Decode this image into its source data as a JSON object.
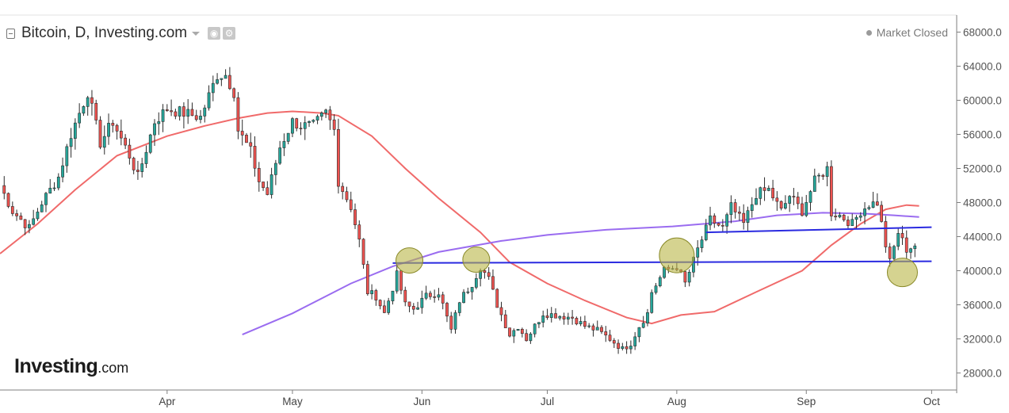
{
  "header": {
    "title": "Bitcoin, D, Investing.com",
    "market_status": "Market Closed",
    "logo_main": "Investing",
    "logo_sub": ".com"
  },
  "colors": {
    "up": "#26a69a",
    "down": "#ef5350",
    "ma_short": "#f06a6a",
    "ma_long": "#9a6cf0",
    "level": "#2a2ae0",
    "marker": "#b9b646"
  },
  "chart_data": {
    "type": "candlestick",
    "title": "Bitcoin, D, Investing.com",
    "ylim": [
      26000,
      70000
    ],
    "y_ticks": [
      28000,
      32000,
      36000,
      40000,
      44000,
      48000,
      52000,
      56000,
      60000,
      64000,
      68000
    ],
    "y_tick_labels": [
      "28000.0",
      "32000.0",
      "36000.0",
      "40000.0",
      "44000.0",
      "48000.0",
      "52000.0",
      "56000.0",
      "60000.0",
      "64000.0",
      "68000.0"
    ],
    "x_ticks": [
      {
        "date": "2021-04-01",
        "label": "Apr"
      },
      {
        "date": "2021-05-01",
        "label": "May"
      },
      {
        "date": "2021-06-01",
        "label": "Jun"
      },
      {
        "date": "2021-07-01",
        "label": "Jul"
      },
      {
        "date": "2021-08-01",
        "label": "Aug"
      },
      {
        "date": "2021-09-01",
        "label": "Sep"
      },
      {
        "date": "2021-10-01",
        "label": "Oct"
      }
    ],
    "x_range": [
      "2021-02-20",
      "2021-10-07"
    ],
    "price_anchors": [
      [
        "2021-02-20",
        50000
      ],
      [
        "2021-02-23",
        47000
      ],
      [
        "2021-02-27",
        45000
      ],
      [
        "2021-03-02",
        48000
      ],
      [
        "2021-03-06",
        51000
      ],
      [
        "2021-03-09",
        56000
      ],
      [
        "2021-03-13",
        61000
      ],
      [
        "2021-03-16",
        55000
      ],
      [
        "2021-03-19",
        57500
      ],
      [
        "2021-03-23",
        53500
      ],
      [
        "2021-03-25",
        51000
      ],
      [
        "2021-03-29",
        57500
      ],
      [
        "2021-04-01",
        59000
      ],
      [
        "2021-04-05",
        58500
      ],
      [
        "2021-04-09",
        58000
      ],
      [
        "2021-04-13",
        63000
      ],
      [
        "2021-04-15",
        63000
      ],
      [
        "2021-04-17",
        61000
      ],
      [
        "2021-04-18",
        56500
      ],
      [
        "2021-04-21",
        54000
      ],
      [
        "2021-04-23",
        50500
      ],
      [
        "2021-04-25",
        49000
      ],
      [
        "2021-04-28",
        54500
      ],
      [
        "2021-05-01",
        57500
      ],
      [
        "2021-05-03",
        57000
      ],
      [
        "2021-05-06",
        57000
      ],
      [
        "2021-05-09",
        58500
      ],
      [
        "2021-05-11",
        56500
      ],
      [
        "2021-05-12",
        50500
      ],
      [
        "2021-05-15",
        47500
      ],
      [
        "2021-05-17",
        43500
      ],
      [
        "2021-05-19",
        37500
      ],
      [
        "2021-05-21",
        37000
      ],
      [
        "2021-05-23",
        35000
      ],
      [
        "2021-05-26",
        39500
      ],
      [
        "2021-05-28",
        36000
      ],
      [
        "2021-05-30",
        35500
      ],
      [
        "2021-06-02",
        37000
      ],
      [
        "2021-06-05",
        37500
      ],
      [
        "2021-06-08",
        33000
      ],
      [
        "2021-06-10",
        36500
      ],
      [
        "2021-06-13",
        38500
      ],
      [
        "2021-06-15",
        40500
      ],
      [
        "2021-06-17",
        39000
      ],
      [
        "2021-06-19",
        36000
      ],
      [
        "2021-06-22",
        32500
      ],
      [
        "2021-06-24",
        33500
      ],
      [
        "2021-06-26",
        32000
      ],
      [
        "2021-06-30",
        35000
      ],
      [
        "2021-07-03",
        34800
      ],
      [
        "2021-07-07",
        34500
      ],
      [
        "2021-07-10",
        33500
      ],
      [
        "2021-07-13",
        33000
      ],
      [
        "2021-07-16",
        32000
      ],
      [
        "2021-07-19",
        30800
      ],
      [
        "2021-07-21",
        31500
      ],
      [
        "2021-07-23",
        33500
      ],
      [
        "2021-07-25",
        35000
      ],
      [
        "2021-07-26",
        37500
      ],
      [
        "2021-07-29",
        40000
      ],
      [
        "2021-08-01",
        40500
      ],
      [
        "2021-08-03",
        38500
      ],
      [
        "2021-08-06",
        42500
      ],
      [
        "2021-08-09",
        46000
      ],
      [
        "2021-08-12",
        45000
      ],
      [
        "2021-08-14",
        47500
      ],
      [
        "2021-08-17",
        45500
      ],
      [
        "2021-08-20",
        49000
      ],
      [
        "2021-08-23",
        49500
      ],
      [
        "2021-08-26",
        47000
      ],
      [
        "2021-08-28",
        48800
      ],
      [
        "2021-08-31",
        47000
      ],
      [
        "2021-09-03",
        50500
      ],
      [
        "2021-09-06",
        52000
      ],
      [
        "2021-09-07",
        46800
      ],
      [
        "2021-09-09",
        46500
      ],
      [
        "2021-09-12",
        45500
      ],
      [
        "2021-09-14",
        47000
      ],
      [
        "2021-09-16",
        47800
      ],
      [
        "2021-09-18",
        48000
      ],
      [
        "2021-09-20",
        43000
      ],
      [
        "2021-09-21",
        41000
      ],
      [
        "2021-09-23",
        44500
      ],
      [
        "2021-09-25",
        42500
      ],
      [
        "2021-09-27",
        43000
      ]
    ],
    "ma_short": [
      [
        "2021-02-20",
        42000
      ],
      [
        "2021-03-01",
        45500
      ],
      [
        "2021-03-10",
        49500
      ],
      [
        "2021-03-20",
        53500
      ],
      [
        "2021-04-01",
        55800
      ],
      [
        "2021-04-10",
        57000
      ],
      [
        "2021-04-18",
        57900
      ],
      [
        "2021-04-25",
        58500
      ],
      [
        "2021-05-01",
        58700
      ],
      [
        "2021-05-08",
        58500
      ],
      [
        "2021-05-12",
        58200
      ],
      [
        "2021-05-20",
        55800
      ],
      [
        "2021-05-28",
        52000
      ],
      [
        "2021-06-05",
        48500
      ],
      [
        "2021-06-15",
        44500
      ],
      [
        "2021-06-22",
        41000
      ],
      [
        "2021-07-01",
        38500
      ],
      [
        "2021-07-10",
        36500
      ],
      [
        "2021-07-20",
        34500
      ],
      [
        "2021-07-26",
        33800
      ],
      [
        "2021-08-02",
        34800
      ],
      [
        "2021-08-10",
        35200
      ],
      [
        "2021-08-20",
        37500
      ],
      [
        "2021-08-31",
        40000
      ],
      [
        "2021-09-07",
        43000
      ],
      [
        "2021-09-14",
        45500
      ],
      [
        "2021-09-20",
        47200
      ],
      [
        "2021-09-25",
        47700
      ],
      [
        "2021-09-28",
        47600
      ]
    ],
    "ma_long": [
      [
        "2021-04-19",
        32500
      ],
      [
        "2021-05-01",
        35000
      ],
      [
        "2021-05-15",
        38500
      ],
      [
        "2021-05-25",
        40500
      ],
      [
        "2021-06-05",
        42200
      ],
      [
        "2021-06-20",
        43500
      ],
      [
        "2021-07-01",
        44200
      ],
      [
        "2021-07-15",
        44800
      ],
      [
        "2021-07-31",
        45200
      ],
      [
        "2021-08-15",
        45800
      ],
      [
        "2021-08-25",
        46500
      ],
      [
        "2021-09-05",
        46800
      ],
      [
        "2021-09-15",
        46700
      ],
      [
        "2021-09-22",
        46500
      ],
      [
        "2021-09-28",
        46300
      ]
    ],
    "lines": [
      {
        "name": "resistance",
        "from": [
          "2021-08-08",
          44500
        ],
        "to": [
          "2021-10-01",
          45100
        ]
      },
      {
        "name": "support",
        "from": [
          "2021-05-25",
          40900
        ],
        "to": [
          "2021-10-01",
          41100
        ]
      }
    ],
    "markers": [
      {
        "date": "2021-05-29",
        "value": 41200,
        "size": "small"
      },
      {
        "date": "2021-06-14",
        "value": 41300,
        "size": "small"
      },
      {
        "date": "2021-08-01",
        "value": 41800,
        "size": "large"
      },
      {
        "date": "2021-09-24",
        "value": 39800,
        "size": "medium"
      }
    ]
  }
}
